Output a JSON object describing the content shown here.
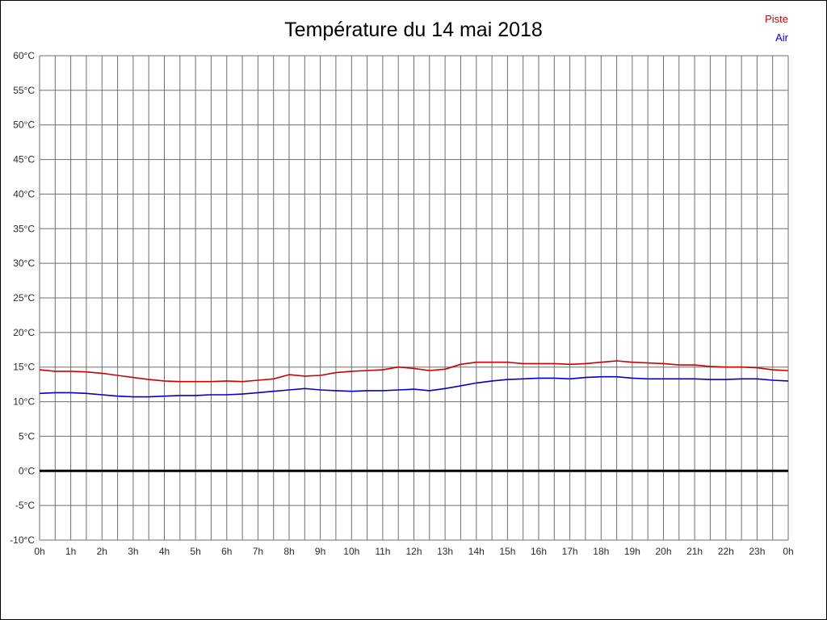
{
  "title": "Température du 14 mai 2018",
  "legend": [
    {
      "label": "Piste",
      "color": "#cc0000"
    },
    {
      "label": "Air",
      "color": "#0000cc"
    }
  ],
  "chart_data": {
    "type": "line",
    "title": "Température du 14 mai 2018",
    "xlabel": "",
    "ylabel": "",
    "xlim": [
      0,
      24
    ],
    "ylim": [
      -10,
      60
    ],
    "grid": {
      "on": true,
      "x_step": 0.5,
      "y_step": 5,
      "color": "#6e6e6e",
      "zero_line_color": "#000000",
      "zero_line_width": 3
    },
    "legend_position": "top-right",
    "x_ticks": [
      0,
      1,
      2,
      3,
      4,
      5,
      6,
      7,
      8,
      9,
      10,
      11,
      12,
      13,
      14,
      15,
      16,
      17,
      18,
      19,
      20,
      21,
      22,
      23,
      24
    ],
    "x_tick_labels": [
      "0h",
      "1h",
      "2h",
      "3h",
      "4h",
      "5h",
      "6h",
      "7h",
      "8h",
      "9h",
      "10h",
      "11h",
      "12h",
      "13h",
      "14h",
      "15h",
      "16h",
      "17h",
      "18h",
      "19h",
      "20h",
      "21h",
      "22h",
      "23h",
      "0h"
    ],
    "y_ticks": [
      60,
      55,
      50,
      45,
      40,
      35,
      30,
      25,
      20,
      15,
      10,
      5,
      0,
      -5,
      -10
    ],
    "y_tick_labels": [
      "60°C",
      "55°C",
      "50°C",
      "45°C",
      "40°C",
      "35°C",
      "30°C",
      "25°C",
      "20°C",
      "15°C",
      "10°C",
      "5°C",
      "0°C",
      "-5°C",
      "-10°C"
    ],
    "x": [
      0,
      0.5,
      1,
      1.5,
      2,
      2.5,
      3,
      3.5,
      4,
      4.5,
      5,
      5.5,
      6,
      6.5,
      7,
      7.5,
      8,
      8.5,
      9,
      9.5,
      10,
      10.5,
      11,
      11.5,
      12,
      12.5,
      13,
      13.5,
      14,
      14.5,
      15,
      15.5,
      16,
      16.5,
      17,
      17.5,
      18,
      18.5,
      19,
      19.5,
      20,
      20.5,
      21,
      21.5,
      22,
      22.5,
      23,
      23.5,
      24
    ],
    "series": [
      {
        "name": "Piste",
        "color": "#cc0000",
        "values": [
          14.6,
          14.4,
          14.4,
          14.3,
          14.1,
          13.8,
          13.5,
          13.2,
          13.0,
          12.9,
          12.9,
          12.9,
          13.0,
          12.9,
          13.1,
          13.3,
          13.9,
          13.7,
          13.8,
          14.2,
          14.4,
          14.5,
          14.6,
          15.0,
          14.8,
          14.5,
          14.7,
          15.4,
          15.7,
          15.7,
          15.7,
          15.5,
          15.5,
          15.5,
          15.4,
          15.5,
          15.7,
          15.9,
          15.7,
          15.6,
          15.5,
          15.3,
          15.3,
          15.1,
          15.0,
          15.0,
          14.9,
          14.6,
          14.5
        ]
      },
      {
        "name": "Air",
        "color": "#0000cc",
        "values": [
          11.2,
          11.3,
          11.3,
          11.2,
          11.0,
          10.8,
          10.7,
          10.7,
          10.8,
          10.9,
          10.9,
          11.0,
          11.0,
          11.1,
          11.3,
          11.5,
          11.7,
          11.9,
          11.7,
          11.6,
          11.5,
          11.6,
          11.6,
          11.7,
          11.8,
          11.6,
          11.9,
          12.3,
          12.7,
          13.0,
          13.2,
          13.3,
          13.4,
          13.4,
          13.3,
          13.5,
          13.6,
          13.6,
          13.4,
          13.3,
          13.3,
          13.3,
          13.3,
          13.2,
          13.2,
          13.3,
          13.3,
          13.1,
          13.0
        ]
      }
    ]
  }
}
